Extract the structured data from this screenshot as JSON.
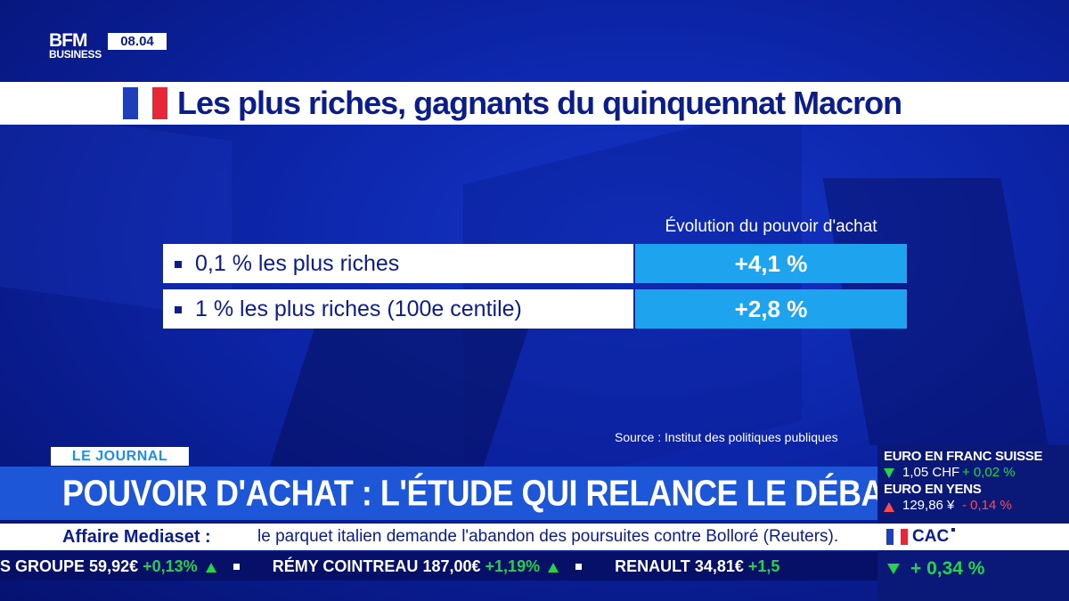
{
  "channel": {
    "logo_line1": "BFM",
    "logo_line2": "BUSINESS",
    "clock": "08.04"
  },
  "title": {
    "text": "Les plus riches, gagnants du quinquennat Macron",
    "flag_colors": [
      "#1f3fb8",
      "#ffffff",
      "#e8263a"
    ]
  },
  "table": {
    "column_header": "Évolution du pouvoir d'achat",
    "rows": [
      {
        "label": "0,1 % les plus riches",
        "value": "+4,1 %"
      },
      {
        "label": "1 % les plus riches (100e centile)",
        "value": "+2,8 %"
      }
    ],
    "source": "Source : Institut des politiques publiques"
  },
  "lower_third": {
    "tag": "LE JOURNAL",
    "headline": "POUVOIR D'ACHAT : L'ÉTUDE QUI RELANCE LE DÉBAT",
    "news_topic": "Affaire Mediaset :",
    "news_text": "le parquet italien demande l'abandon des poursuites contre Bolloré (Reuters)."
  },
  "ticker": [
    {
      "name": "S GROUPE",
      "price": "59,92€",
      "change": "+0,13%"
    },
    {
      "name": "RÉMY COINTREAU",
      "price": "187,00€",
      "change": "+1,19%"
    },
    {
      "name": "RENAULT",
      "price": "34,81€",
      "change": "+1,5"
    }
  ],
  "markets": {
    "fx1": {
      "title": "EURO EN FRANC SUISSE",
      "value": "1,05 CHF",
      "change": "+ 0,02 %",
      "direction": "up"
    },
    "fx2": {
      "title": "EURO EN YENS",
      "value": "129,86 ¥",
      "change": "- 0,14 %",
      "direction": "down"
    },
    "index": {
      "name": "CAC",
      "change": "+ 0,34 %",
      "direction": "up"
    }
  },
  "colors": {
    "brand_blue": "#0b1d8a",
    "accent_cyan": "#1ea4ee",
    "headline_blue": "#1e56d8",
    "positive": "#25d24a",
    "negative": "#ff4b4b"
  }
}
